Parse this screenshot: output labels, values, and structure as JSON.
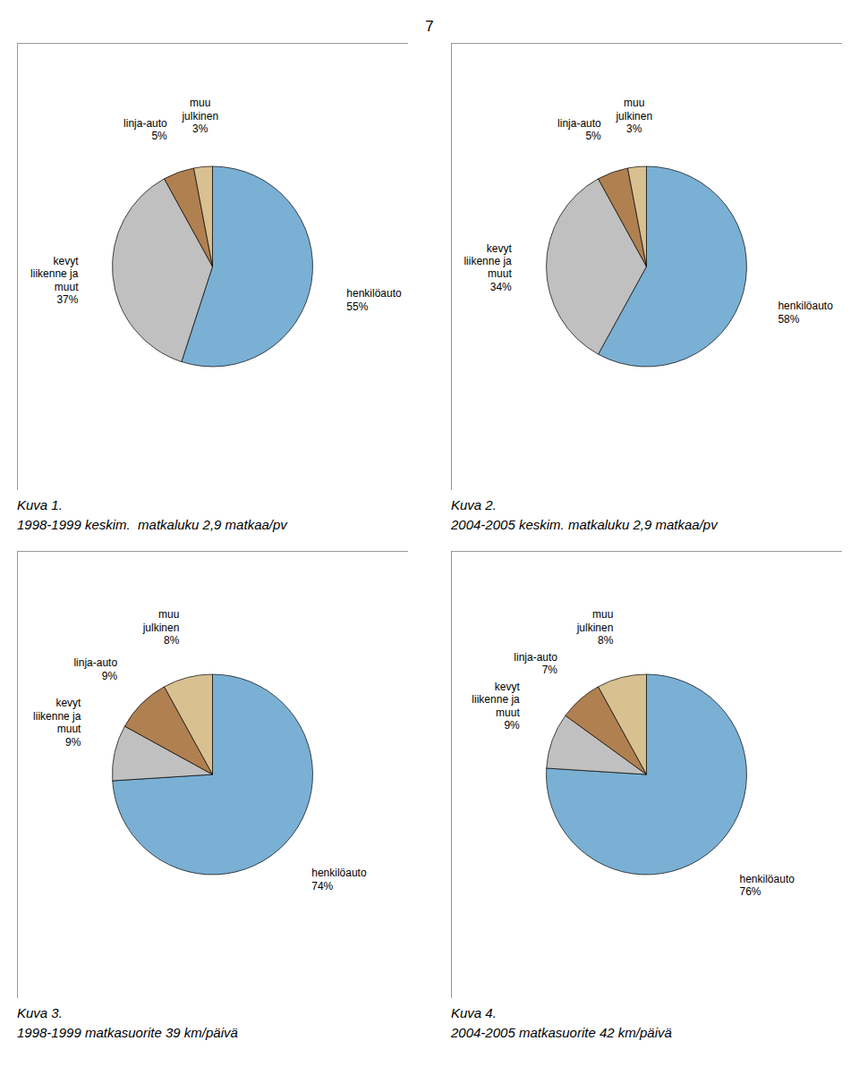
{
  "title": "7",
  "chart_data": [
    {
      "type": "pie",
      "title": "Kuva 1.",
      "subtitle": "1998-1999 keskim.  matkaluku 2,9 matkaa/pv",
      "categories": [
        "henkilöauto",
        "kevyt\nliikenne ja\nmuut",
        "linja-auto",
        "muu\njulkinen"
      ],
      "values": [
        55,
        37,
        5,
        3
      ],
      "value_labels": [
        "55%",
        "37%",
        "5%",
        "3%"
      ],
      "colors": [
        "#7ab0d4",
        "#c0c0c0",
        "#b08050",
        "#d8c090"
      ],
      "data_labels": true
    },
    {
      "type": "pie",
      "title": "Kuva 2.",
      "subtitle": "2004-2005 keskim. matkaluku 2,9 matkaa/pv",
      "categories": [
        "henkilöauto",
        "kevyt\nliikenne ja\nmuut",
        "linja-auto",
        "muu\njulkinen"
      ],
      "values": [
        58,
        34,
        5,
        3
      ],
      "value_labels": [
        "58%",
        "34%",
        "5%",
        "3%"
      ],
      "colors": [
        "#7ab0d4",
        "#c0c0c0",
        "#b08050",
        "#d8c090"
      ],
      "data_labels": true
    },
    {
      "type": "pie",
      "title": "Kuva 3.",
      "subtitle": "1998-1999 matkasuorite 39 km/päivä",
      "categories": [
        "henkilöauto",
        "kevyt\nliikenne ja\nmuut",
        "linja-auto",
        "muu\njulkinen"
      ],
      "values": [
        74,
        9,
        9,
        8
      ],
      "value_labels": [
        "74%",
        "9%",
        "9%",
        "8%"
      ],
      "colors": [
        "#7ab0d4",
        "#c0c0c0",
        "#b08050",
        "#d8c090"
      ],
      "data_labels": true
    },
    {
      "type": "pie",
      "title": "Kuva 4.",
      "subtitle": "2004-2005 matkasuorite 42 km/päivä",
      "categories": [
        "henkilöauto",
        "kevyt\nliikenne ja\nmuut",
        "linja-auto",
        "muu\njulkinen"
      ],
      "values": [
        76,
        9,
        7,
        8
      ],
      "value_labels": [
        "76%",
        "9%",
        "7%",
        "8%"
      ],
      "colors": [
        "#7ab0d4",
        "#c0c0c0",
        "#b08050",
        "#d8c090"
      ],
      "data_labels": true
    }
  ]
}
